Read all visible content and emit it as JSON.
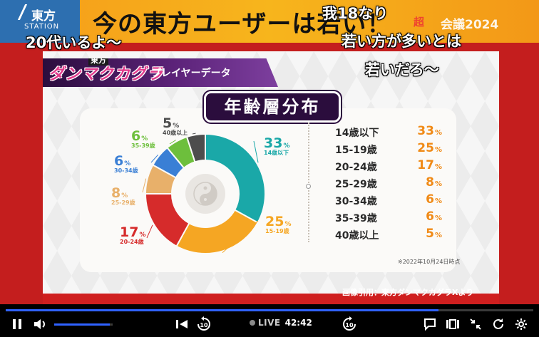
{
  "banner": {
    "brand_name": "東方",
    "brand_sub": "STATION",
    "title": "今の東方ユーザーは若い！",
    "event_keyword": "超",
    "event_label": "会議2024"
  },
  "comments": [
    "20代いるよ〜",
    "我18なり",
    "若い方が多いとは",
    "若いだろ〜"
  ],
  "slide": {
    "logo_top": "東方",
    "logo": "ダンマクカグラ",
    "logo_sub": "プレイヤーデータ",
    "chart_title": "年齢層分布",
    "date_note": "※2022年10月24日時点",
    "credit": "画像引用：東方ダンマクカグラXより",
    "center_icon": "yin-yang-icon"
  },
  "chart_data": {
    "type": "pie",
    "title": "年齢層分布",
    "categories": [
      "14歳以下",
      "15-19歳",
      "20-24歳",
      "25-29歳",
      "30-34歳",
      "35-39歳",
      "40歳以上"
    ],
    "short_labels": [
      "14歳以下",
      "15-19歳",
      "20-24歳",
      "25-29歳",
      "30-34歳",
      "35-39歳",
      "40歳以上"
    ],
    "values": [
      33,
      25,
      17,
      8,
      6,
      6,
      5
    ],
    "unit": "%",
    "colors": [
      "#1aa8a8",
      "#f5a623",
      "#d62b2b",
      "#e8b06a",
      "#3a7fd5",
      "#6dbf3c",
      "#4d4d4d"
    ]
  },
  "player": {
    "live_label": "LIVE",
    "time": "42:42",
    "progress": 0.82,
    "volume": 0.95,
    "icons": [
      "pause-icon",
      "volume-icon",
      "skip-back-icon",
      "rewind-10-icon",
      "forward-10-icon",
      "comment-icon",
      "theater-icon",
      "shrink-icon",
      "reload-icon",
      "settings-icon"
    ]
  }
}
